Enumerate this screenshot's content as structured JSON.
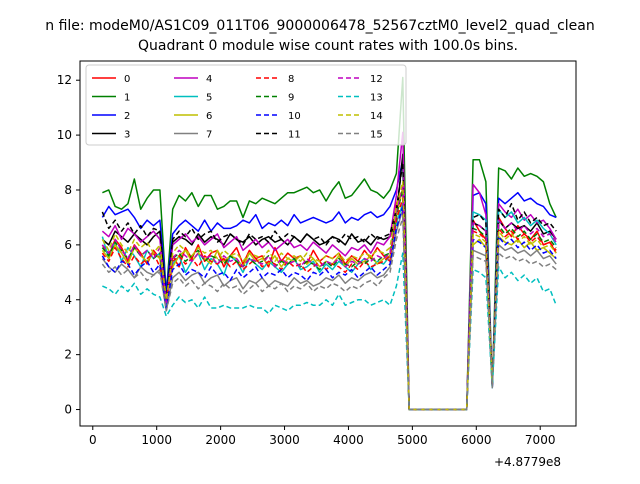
{
  "suptitle": "n file: modeM0/AS1C09_011T06_9000006478_52567cztM0_level2_quad_clean",
  "chart_data": {
    "type": "line",
    "title": "Quadrant 0 module wise count rates with 100.0s bins.",
    "xlabel": "",
    "ylabel": "",
    "x_offset_label": "+4.8779e8",
    "xlim": [
      -200,
      7560
    ],
    "ylim": [
      -0.6,
      12.7
    ],
    "xticks": [
      0,
      1000,
      2000,
      3000,
      4000,
      5000,
      6000,
      7000
    ],
    "yticks": [
      0,
      2,
      4,
      6,
      8,
      10,
      12
    ],
    "grid": false,
    "legend": {
      "placement": "top-left",
      "ncol": 4
    },
    "x_start": 150,
    "x_step": 100,
    "gap_range": [
      4950,
      5850
    ],
    "series": [
      {
        "name": "0",
        "color": "#ff0000",
        "dash": "solid",
        "values": [
          6.0,
          5.6,
          6.2,
          5.9,
          5.4,
          6.0,
          5.7,
          5.3,
          5.8,
          5.5,
          4.0,
          5.6,
          5.2,
          5.9,
          5.5,
          6.0,
          5.4,
          5.7,
          5.8,
          5.2,
          5.6,
          5.9,
          5.3,
          5.8,
          5.5,
          5.6,
          5.2,
          5.9,
          5.4,
          5.7,
          5.5,
          5.6,
          5.3,
          5.8,
          5.4,
          5.6,
          5.5,
          5.7,
          5.3,
          5.6,
          5.4,
          5.8,
          5.5,
          5.9,
          5.6,
          5.4,
          7.5,
          8.0,
          0.0,
          0,
          0,
          0,
          0,
          0,
          0,
          0,
          0,
          0,
          6.9,
          6.5,
          6.2,
          1.0,
          7.0,
          6.6,
          6.3,
          6.7,
          6.4,
          6.2,
          6.5,
          6.0,
          6.1,
          5.7
        ]
      },
      {
        "name": "1",
        "color": "#008000",
        "dash": "solid",
        "values": [
          7.9,
          8.0,
          7.4,
          7.3,
          7.5,
          8.4,
          7.3,
          7.7,
          8.0,
          8.0,
          4.2,
          7.3,
          7.8,
          7.6,
          7.9,
          7.4,
          7.8,
          7.8,
          7.3,
          7.4,
          7.6,
          7.6,
          7.0,
          7.6,
          7.5,
          7.7,
          7.6,
          7.5,
          7.7,
          7.9,
          7.9,
          8.0,
          8.1,
          7.9,
          8.0,
          7.6,
          8.0,
          8.3,
          7.7,
          7.8,
          8.1,
          8.4,
          8.0,
          7.9,
          7.7,
          8.0,
          8.6,
          12.1,
          0.0,
          0,
          0,
          0,
          0,
          0,
          0,
          0,
          0,
          0,
          9.1,
          9.1,
          8.3,
          0.8,
          8.8,
          8.7,
          8.4,
          8.8,
          8.5,
          8.6,
          8.5,
          8.3,
          7.5,
          7.0
        ]
      },
      {
        "name": "2",
        "color": "#0000ff",
        "dash": "solid",
        "values": [
          7.0,
          7.4,
          7.1,
          7.2,
          7.3,
          7.0,
          6.6,
          6.9,
          6.7,
          6.9,
          4.3,
          6.4,
          6.7,
          6.9,
          6.7,
          6.5,
          6.9,
          6.5,
          6.8,
          6.6,
          6.6,
          6.7,
          6.9,
          6.8,
          7.1,
          6.6,
          6.8,
          6.7,
          6.9,
          6.7,
          7.1,
          6.8,
          6.9,
          7.0,
          6.9,
          6.8,
          6.9,
          7.2,
          6.8,
          7.0,
          6.9,
          7.1,
          7.2,
          7.0,
          7.1,
          7.4,
          8.0,
          9.1,
          0.0,
          0,
          0,
          0,
          0,
          0,
          0,
          0,
          0,
          0,
          7.8,
          7.9,
          7.5,
          0.8,
          7.7,
          7.5,
          7.7,
          7.9,
          7.6,
          7.7,
          7.5,
          7.4,
          7.1,
          7.0
        ]
      },
      {
        "name": "3",
        "color": "#000000",
        "dash": "solid",
        "values": [
          6.2,
          6.0,
          6.5,
          6.3,
          6.1,
          6.4,
          6.2,
          6.0,
          6.3,
          6.5,
          3.9,
          6.1,
          6.3,
          6.2,
          6.0,
          6.4,
          6.1,
          6.3,
          6.2,
          6.0,
          6.4,
          6.2,
          6.1,
          6.3,
          6.0,
          6.2,
          6.3,
          6.1,
          6.2,
          6.0,
          6.3,
          6.1,
          6.4,
          6.2,
          6.0,
          6.1,
          6.3,
          6.2,
          6.0,
          6.4,
          6.1,
          6.2,
          6.0,
          6.3,
          6.2,
          6.3,
          7.0,
          9.3,
          0.0,
          0,
          0,
          0,
          0,
          0,
          0,
          0,
          0,
          0,
          6.8,
          6.7,
          6.5,
          0.9,
          6.9,
          6.6,
          6.8,
          6.6,
          6.7,
          6.5,
          6.8,
          6.4,
          6.5,
          6.2
        ]
      },
      {
        "name": "4",
        "color": "#bf00bf",
        "dash": "solid",
        "values": [
          6.5,
          6.3,
          6.7,
          6.2,
          6.6,
          6.4,
          6.1,
          6.3,
          6.5,
          6.2,
          3.8,
          6.0,
          6.2,
          6.4,
          6.1,
          6.3,
          6.0,
          6.2,
          6.4,
          5.9,
          6.1,
          6.3,
          5.8,
          6.0,
          6.2,
          5.9,
          6.1,
          5.8,
          6.0,
          6.2,
          5.9,
          6.0,
          5.8,
          6.1,
          5.9,
          5.7,
          6.0,
          5.8,
          5.6,
          5.9,
          5.8,
          6.0,
          5.7,
          6.1,
          6.0,
          6.3,
          7.8,
          10.1,
          0.0,
          0,
          0,
          0,
          0,
          0,
          0,
          0,
          0,
          0,
          8.2,
          7.9,
          7.1,
          0.9,
          7.5,
          7.2,
          7.0,
          7.3,
          6.9,
          7.1,
          6.8,
          6.9,
          6.6,
          6.2
        ]
      },
      {
        "name": "5",
        "color": "#00bfbf",
        "dash": "solid",
        "values": [
          6.3,
          5.5,
          6.1,
          5.4,
          5.9,
          5.6,
          5.2,
          5.8,
          5.5,
          5.7,
          3.8,
          5.3,
          5.6,
          5.0,
          5.4,
          5.7,
          5.1,
          5.5,
          5.3,
          4.9,
          5.6,
          5.4,
          5.0,
          5.5,
          5.3,
          5.1,
          5.4,
          5.2,
          5.0,
          5.3,
          5.5,
          5.1,
          5.2,
          5.4,
          5.0,
          5.3,
          5.1,
          5.4,
          5.2,
          5.0,
          5.3,
          5.5,
          5.1,
          5.4,
          5.3,
          5.6,
          6.8,
          7.5,
          0.0,
          0,
          0,
          0,
          0,
          0,
          0,
          0,
          0,
          0,
          7.2,
          7.1,
          6.9,
          0.9,
          7.3,
          7.0,
          7.2,
          6.8,
          7.0,
          6.7,
          6.9,
          6.6,
          6.4,
          6.0
        ]
      },
      {
        "name": "6",
        "color": "#bfbf00",
        "dash": "solid",
        "values": [
          5.8,
          5.5,
          6.0,
          5.7,
          5.3,
          5.9,
          5.6,
          5.4,
          5.7,
          5.5,
          3.9,
          5.2,
          5.6,
          5.8,
          5.4,
          5.7,
          5.5,
          5.3,
          5.8,
          5.4,
          5.6,
          5.5,
          5.2,
          5.7,
          5.4,
          5.5,
          5.3,
          5.6,
          5.2,
          5.5,
          5.4,
          5.6,
          5.3,
          5.5,
          5.2,
          5.4,
          5.3,
          5.6,
          5.2,
          5.5,
          5.3,
          5.4,
          5.6,
          5.3,
          5.5,
          5.6,
          7.0,
          8.1,
          0.0,
          0,
          0,
          0,
          0,
          0,
          0,
          0,
          0,
          0,
          6.0,
          6.2,
          5.9,
          0.9,
          6.3,
          6.1,
          6.0,
          6.2,
          5.9,
          6.1,
          5.8,
          5.9,
          5.7,
          5.5
        ]
      },
      {
        "name": "7",
        "color": "#808080",
        "dash": "solid",
        "values": [
          5.5,
          5.2,
          5.0,
          5.3,
          5.1,
          4.8,
          5.2,
          5.0,
          4.9,
          5.1,
          3.6,
          4.8,
          5.0,
          4.7,
          4.9,
          5.0,
          4.6,
          4.8,
          4.9,
          4.5,
          4.7,
          4.8,
          4.4,
          4.7,
          4.6,
          4.8,
          4.5,
          4.7,
          4.6,
          4.5,
          4.8,
          4.6,
          4.7,
          4.5,
          4.6,
          4.8,
          4.7,
          4.9,
          4.6,
          4.8,
          4.7,
          4.9,
          5.0,
          4.8,
          4.9,
          5.2,
          6.5,
          7.3,
          0.0,
          0,
          0,
          0,
          0,
          0,
          0,
          0,
          0,
          0,
          5.8,
          5.7,
          5.6,
          0.9,
          6.0,
          5.8,
          5.9,
          5.7,
          5.8,
          5.6,
          5.8,
          5.5,
          5.6,
          5.3
        ]
      },
      {
        "name": "8",
        "color": "#ff0000",
        "dash": "dashed",
        "values": [
          5.7,
          5.4,
          5.9,
          5.5,
          5.2,
          5.6,
          5.3,
          5.5,
          5.7,
          5.2,
          4.0,
          5.4,
          5.6,
          5.3,
          5.5,
          5.2,
          5.6,
          5.4,
          5.3,
          5.5,
          5.2,
          5.4,
          5.1,
          5.3,
          5.5,
          5.2,
          5.4,
          5.3,
          5.1,
          5.4,
          5.2,
          5.3,
          5.0,
          5.2,
          5.4,
          5.1,
          5.3,
          5.2,
          5.0,
          5.3,
          5.1,
          5.4,
          5.2,
          5.3,
          5.4,
          5.6,
          6.9,
          7.7,
          0.0,
          0,
          0,
          0,
          0,
          0,
          0,
          0,
          0,
          0,
          6.5,
          6.4,
          6.2,
          0.9,
          6.6,
          6.3,
          6.5,
          6.2,
          6.4,
          6.1,
          6.3,
          6.0,
          6.1,
          5.8
        ]
      },
      {
        "name": "9",
        "color": "#008000",
        "dash": "dashed",
        "values": [
          5.9,
          5.6,
          6.1,
          5.8,
          5.5,
          5.9,
          5.6,
          5.8,
          5.5,
          5.7,
          3.9,
          5.5,
          5.7,
          5.4,
          5.6,
          5.8,
          5.4,
          5.6,
          5.5,
          5.3,
          5.6,
          5.4,
          5.2,
          5.5,
          5.3,
          5.4,
          5.6,
          5.2,
          5.4,
          5.3,
          5.5,
          5.2,
          5.4,
          5.3,
          5.1,
          5.4,
          5.2,
          5.5,
          5.3,
          5.2,
          5.4,
          5.3,
          5.5,
          5.4,
          5.6,
          5.7,
          7.1,
          8.0,
          0.0,
          0,
          0,
          0,
          0,
          0,
          0,
          0,
          0,
          0,
          6.6,
          6.5,
          6.3,
          0.9,
          6.7,
          6.4,
          6.6,
          6.3,
          6.5,
          6.2,
          6.4,
          6.1,
          6.2,
          5.9
        ]
      },
      {
        "name": "10",
        "color": "#0000ff",
        "dash": "dashed",
        "values": [
          5.6,
          5.2,
          5.0,
          5.4,
          5.3,
          4.9,
          5.2,
          5.4,
          5.0,
          5.3,
          3.7,
          5.1,
          5.3,
          4.9,
          5.1,
          5.0,
          4.8,
          5.2,
          4.9,
          5.0,
          4.7,
          5.1,
          4.8,
          5.0,
          5.2,
          4.8,
          5.0,
          4.9,
          5.1,
          4.8,
          5.0,
          4.9,
          4.7,
          5.0,
          4.9,
          5.1,
          4.8,
          5.0,
          4.9,
          5.1,
          4.8,
          5.0,
          5.2,
          4.9,
          5.1,
          5.3,
          6.6,
          7.4,
          0.0,
          0,
          0,
          0,
          0,
          0,
          0,
          0,
          0,
          0,
          6.2,
          6.1,
          5.9,
          0.8,
          6.3,
          6.0,
          6.2,
          5.9,
          6.1,
          5.8,
          6.0,
          5.7,
          5.8,
          5.5
        ]
      },
      {
        "name": "11",
        "color": "#000000",
        "dash": "dashed",
        "values": [
          7.2,
          6.6,
          6.9,
          6.5,
          6.8,
          6.4,
          6.7,
          6.3,
          6.6,
          6.5,
          4.0,
          6.2,
          6.5,
          6.3,
          6.6,
          6.2,
          6.4,
          6.5,
          6.1,
          6.3,
          6.4,
          6.2,
          6.0,
          6.4,
          6.2,
          6.3,
          6.1,
          6.5,
          6.2,
          6.4,
          6.3,
          6.1,
          6.4,
          6.2,
          6.3,
          6.0,
          6.3,
          6.1,
          6.4,
          6.2,
          6.3,
          6.1,
          6.4,
          6.2,
          6.3,
          6.4,
          7.3,
          9.0,
          0.0,
          0,
          0,
          0,
          0,
          0,
          0,
          0,
          0,
          0,
          7.0,
          7.1,
          6.8,
          0.9,
          7.3,
          7.0,
          7.5,
          6.9,
          7.2,
          6.8,
          7.0,
          6.7,
          6.8,
          6.5
        ]
      },
      {
        "name": "12",
        "color": "#bf00bf",
        "dash": "dashed",
        "values": [
          6.0,
          5.7,
          6.2,
          5.8,
          5.5,
          6.0,
          5.6,
          5.8,
          5.5,
          5.9,
          3.9,
          5.5,
          5.8,
          5.6,
          5.4,
          5.7,
          5.5,
          5.6,
          5.3,
          5.6,
          5.4,
          5.5,
          5.2,
          5.5,
          5.4,
          5.3,
          5.6,
          5.2,
          5.5,
          5.3,
          5.4,
          5.2,
          5.5,
          5.3,
          5.2,
          5.4,
          5.3,
          5.5,
          5.2,
          5.4,
          5.3,
          5.5,
          5.4,
          5.6,
          5.5,
          5.7,
          7.2,
          8.2,
          0.0,
          0,
          0,
          0,
          0,
          0,
          0,
          0,
          0,
          0,
          6.8,
          6.7,
          6.5,
          0.9,
          6.9,
          6.6,
          6.8,
          6.5,
          6.7,
          6.4,
          6.6,
          6.3,
          6.4,
          6.1
        ]
      },
      {
        "name": "13",
        "color": "#00bfbf",
        "dash": "dashed",
        "values": [
          4.5,
          4.4,
          4.2,
          4.5,
          4.3,
          4.6,
          4.2,
          4.4,
          4.2,
          4.1,
          3.4,
          3.8,
          4.1,
          3.9,
          4.0,
          3.7,
          4.1,
          3.7,
          3.7,
          3.8,
          3.7,
          3.7,
          3.7,
          3.8,
          3.7,
          3.7,
          3.5,
          3.8,
          3.7,
          3.6,
          3.8,
          3.8,
          3.9,
          3.8,
          3.8,
          4.0,
          3.8,
          4.2,
          3.8,
          3.9,
          4.0,
          4.0,
          3.8,
          3.9,
          4.0,
          3.8,
          4.5,
          5.7,
          0.0,
          0,
          0,
          0,
          0,
          0,
          0,
          0,
          0,
          0,
          5.1,
          5.0,
          4.8,
          0.8,
          5.2,
          4.8,
          5.0,
          4.7,
          4.9,
          4.6,
          4.8,
          4.3,
          4.4,
          3.8
        ]
      },
      {
        "name": "14",
        "color": "#bfbf00",
        "dash": "dashed",
        "values": [
          6.2,
          5.8,
          6.4,
          6.0,
          5.7,
          6.2,
          5.9,
          6.1,
          5.7,
          6.0,
          4.0,
          5.7,
          6.0,
          5.8,
          5.6,
          5.9,
          5.7,
          5.8,
          5.5,
          5.8,
          5.6,
          5.7,
          5.4,
          5.7,
          5.6,
          5.5,
          5.8,
          5.4,
          5.7,
          5.5,
          5.6,
          5.4,
          5.7,
          5.5,
          5.4,
          5.6,
          5.5,
          5.7,
          5.4,
          5.6,
          5.5,
          5.7,
          5.6,
          5.8,
          5.7,
          5.9,
          7.4,
          8.3,
          0.0,
          0,
          0,
          0,
          0,
          0,
          0,
          0,
          0,
          0,
          6.4,
          6.3,
          6.1,
          0.9,
          6.5,
          6.2,
          6.4,
          6.1,
          6.3,
          6.0,
          6.2,
          5.9,
          6.0,
          5.7
        ]
      },
      {
        "name": "15",
        "color": "#808080",
        "dash": "dashed",
        "values": [
          5.3,
          5.0,
          5.2,
          4.9,
          5.1,
          4.8,
          5.0,
          4.7,
          4.9,
          5.0,
          3.6,
          4.6,
          4.8,
          4.5,
          4.7,
          4.4,
          4.6,
          4.5,
          4.3,
          4.6,
          4.4,
          4.5,
          4.2,
          4.4,
          4.6,
          4.3,
          4.5,
          4.4,
          4.6,
          4.3,
          4.5,
          4.4,
          4.6,
          4.3,
          4.5,
          4.4,
          4.6,
          4.5,
          4.3,
          4.5,
          4.4,
          4.6,
          4.7,
          4.5,
          4.8,
          5.0,
          6.2,
          7.0,
          0.0,
          0,
          0,
          0,
          0,
          0,
          0,
          0,
          0,
          0,
          5.6,
          5.5,
          5.4,
          0.8,
          5.7,
          5.5,
          5.6,
          5.4,
          5.5,
          5.3,
          5.4,
          5.2,
          5.3,
          5.1
        ]
      }
    ]
  }
}
